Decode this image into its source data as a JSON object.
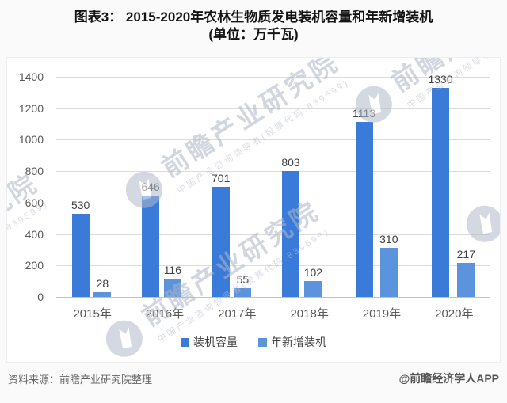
{
  "title": {
    "line1": "图表3： 2015-2020年农林生物质发电装机容量和年新增装机",
    "line2": "(单位：万千瓦)"
  },
  "chart_data": {
    "type": "bar",
    "categories": [
      "2015年",
      "2016年",
      "2017年",
      "2018年",
      "2019年",
      "2020年"
    ],
    "series": [
      {
        "name": "装机容量",
        "color": "#3A7BD9",
        "values": [
          530,
          646,
          701,
          803,
          1113,
          1330
        ]
      },
      {
        "name": "年新增装机",
        "color": "#5B93DC",
        "values": [
          28,
          116,
          55,
          102,
          310,
          217
        ]
      }
    ],
    "title": "2015-2020年农林生物质发电装机容量和年新增装机",
    "unit": "万千瓦",
    "xlabel": "",
    "ylabel": "",
    "ylim": [
      0,
      1400
    ],
    "yticks": [
      1400,
      1200,
      1000,
      800,
      600,
      400,
      200,
      0
    ],
    "grid": true,
    "legend_position": "bottom"
  },
  "watermark": {
    "brand": "前瞻产业研究院",
    "tagline": "中国产业咨询领导者(股票代码:839599)"
  },
  "footer": {
    "source": "资料来源：前瞻产业研究院整理",
    "credit": "@前瞻经济学人APP"
  },
  "colors": {
    "series1": "#3A7BD9",
    "series2": "#5B93DC",
    "grid": "#DCDCDC",
    "axis_text": "#595959",
    "value_text": "#404040",
    "title_text": "#141414",
    "footer_text": "#666666",
    "watermark": "#AEB6C6"
  }
}
